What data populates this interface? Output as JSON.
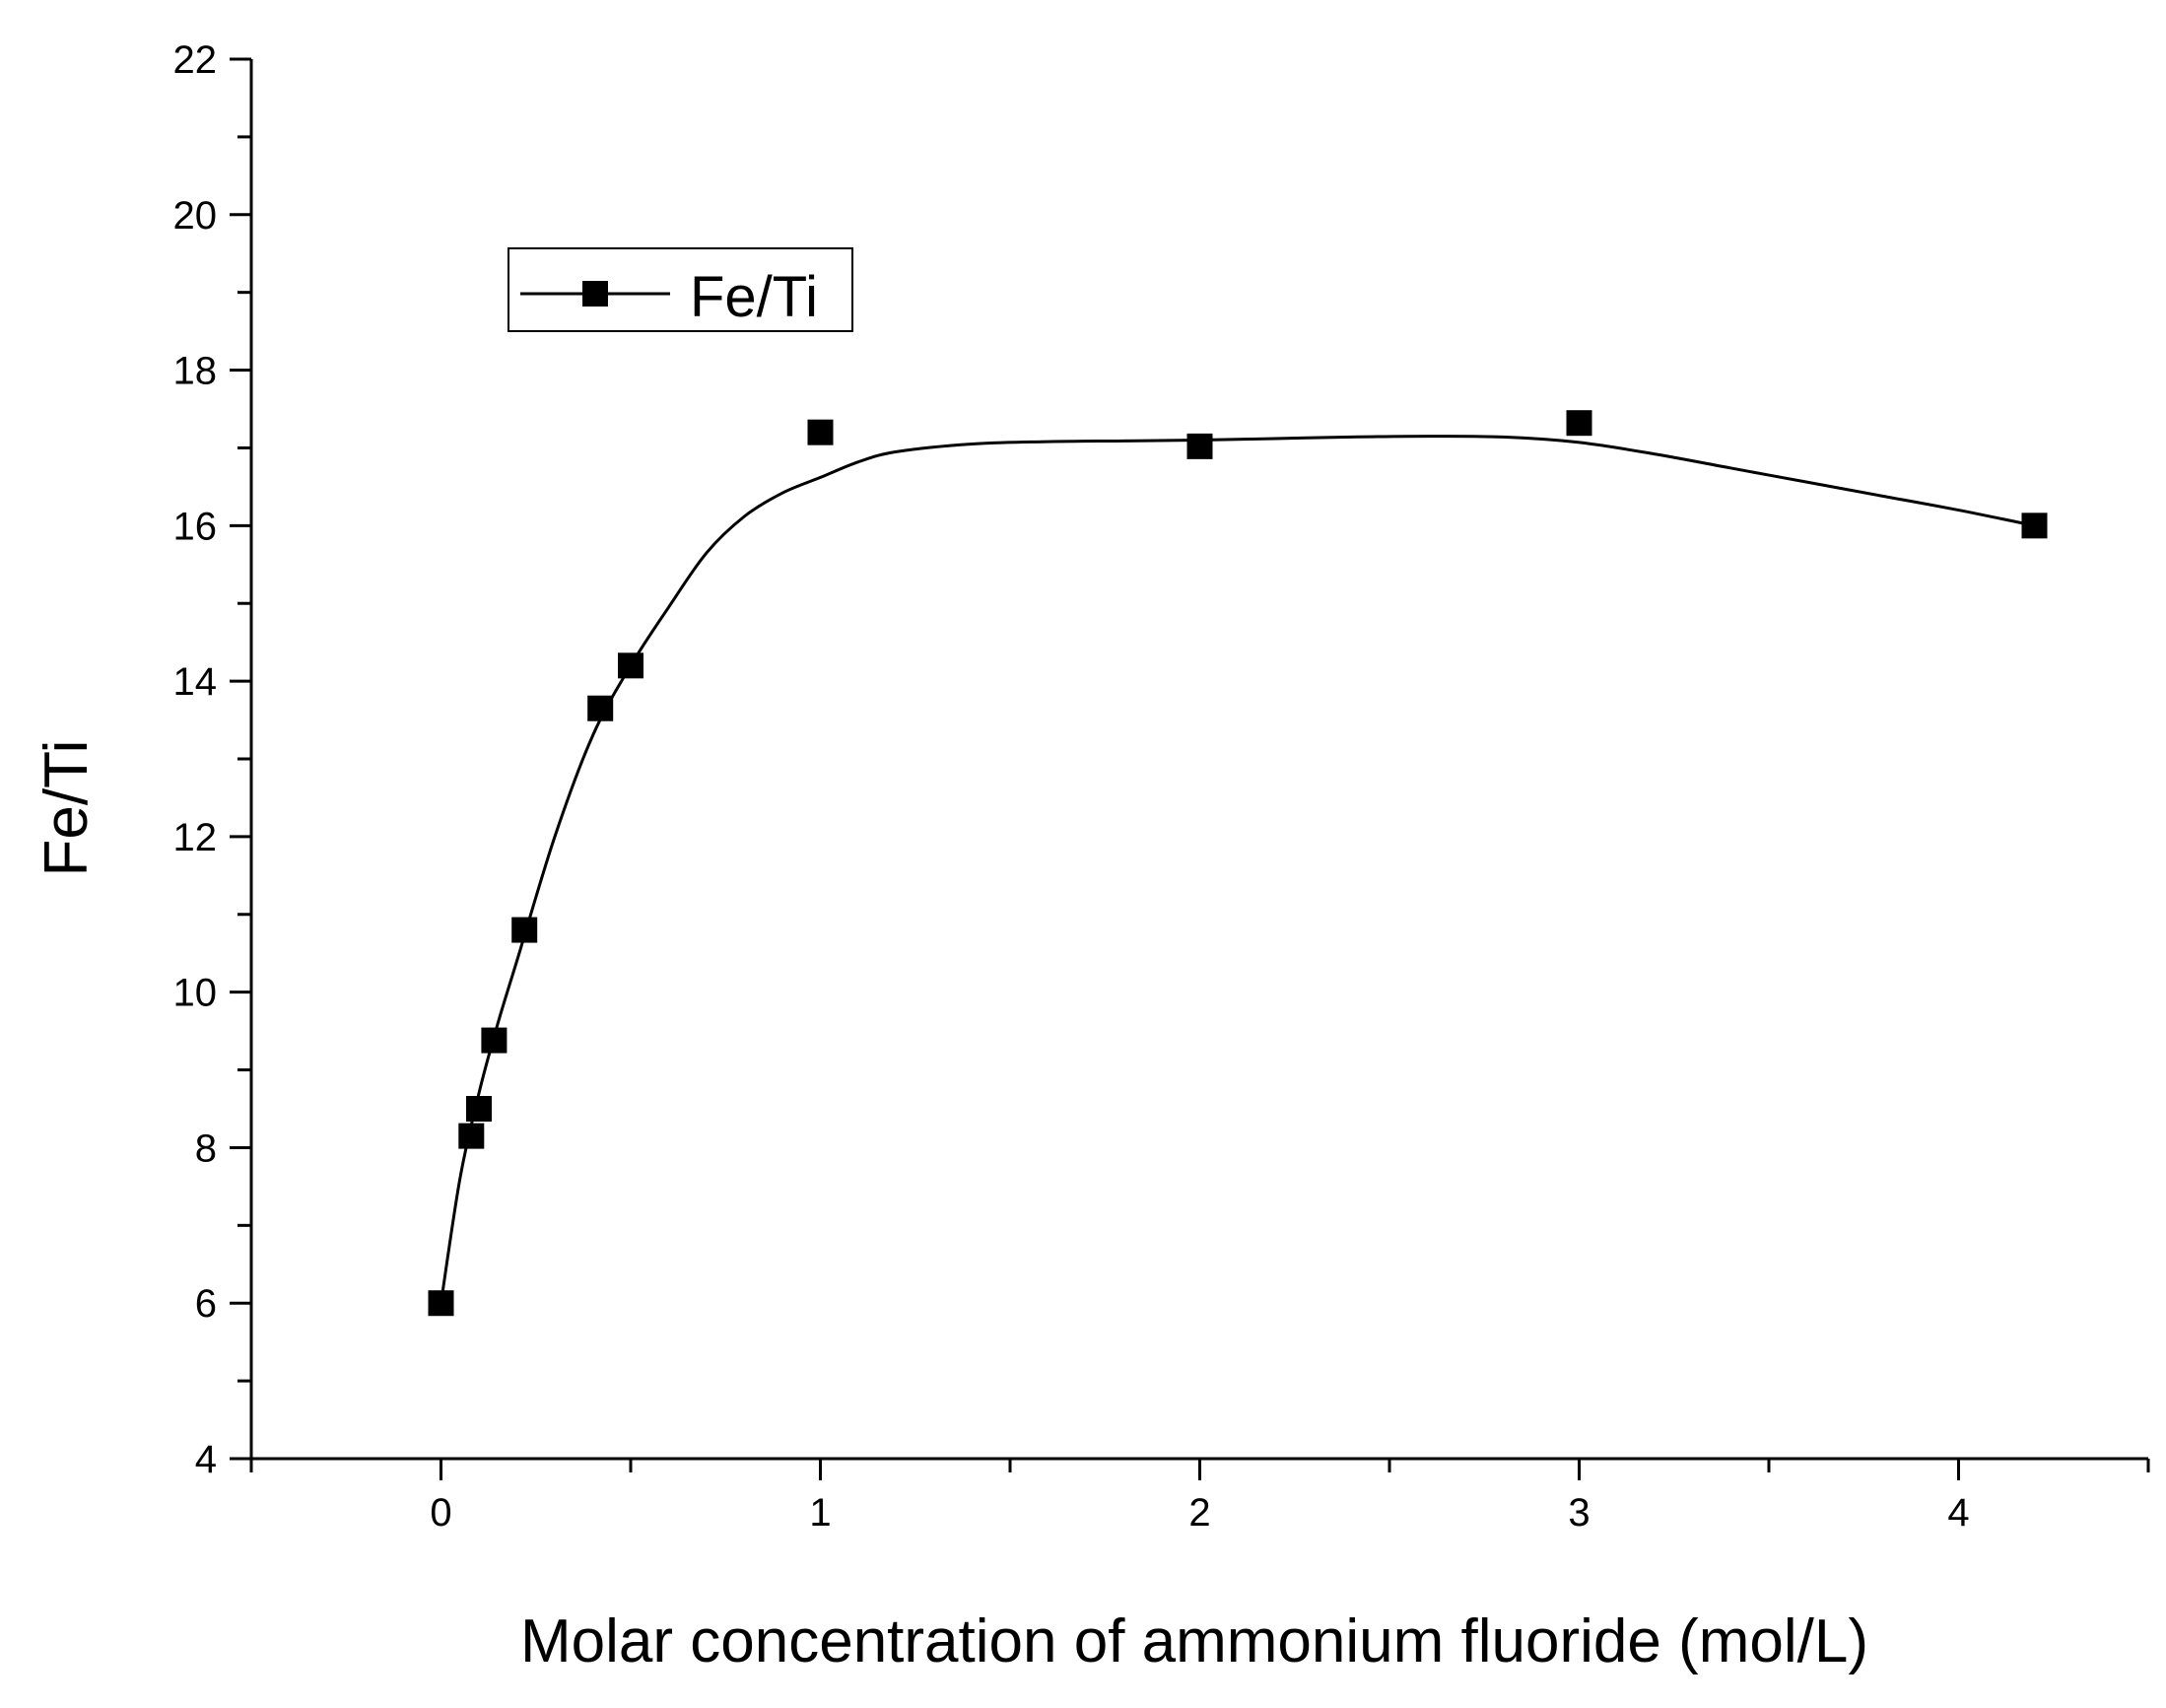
{
  "chart_data": {
    "type": "line",
    "title": "",
    "xlabel": "Molar concentration of ammonium fluoride (mol/L)",
    "ylabel": "Fe/Ti",
    "xlim": [
      -0.5,
      4.5
    ],
    "ylim": [
      4,
      22
    ],
    "x_ticks": [
      0,
      1,
      2,
      3,
      4
    ],
    "x_tick_labels": [
      "0",
      "1",
      "2",
      "3",
      "4"
    ],
    "y_ticks": [
      4,
      6,
      8,
      10,
      12,
      14,
      16,
      18,
      20,
      22
    ],
    "y_tick_labels": [
      "4",
      "6",
      "8",
      "10",
      "12",
      "14",
      "16",
      "18",
      "20",
      "22"
    ],
    "grid": false,
    "legend_position": "top-left",
    "series": [
      {
        "name": "Fe/Ti",
        "marker": "square",
        "smooth": true,
        "color": "#000000",
        "x": [
          0,
          0.08,
          0.1,
          0.14,
          0.22,
          0.42,
          0.5,
          1.0,
          2.0,
          3.0,
          4.2
        ],
        "y": [
          6.0,
          8.15,
          8.5,
          9.38,
          10.8,
          13.65,
          14.2,
          17.2,
          17.02,
          17.32,
          16.0
        ]
      }
    ],
    "fit_curve": {
      "x": [
        0,
        0.05,
        0.1,
        0.15,
        0.2,
        0.3,
        0.4,
        0.5,
        0.6,
        0.7,
        0.8,
        0.9,
        1.0,
        1.1,
        1.2,
        1.4,
        1.6,
        1.8,
        2.0,
        2.2,
        2.4,
        2.6,
        2.8,
        3.0,
        3.2,
        3.4,
        3.6,
        3.8,
        4.0,
        4.2
      ],
      "y": [
        6.0,
        7.6,
        8.7,
        9.6,
        10.4,
        12.0,
        13.3,
        14.2,
        14.95,
        15.65,
        16.12,
        16.42,
        16.62,
        16.82,
        16.95,
        17.05,
        17.08,
        17.09,
        17.1,
        17.12,
        17.14,
        17.15,
        17.14,
        17.07,
        16.92,
        16.74,
        16.56,
        16.38,
        16.2,
        16.0
      ]
    }
  }
}
